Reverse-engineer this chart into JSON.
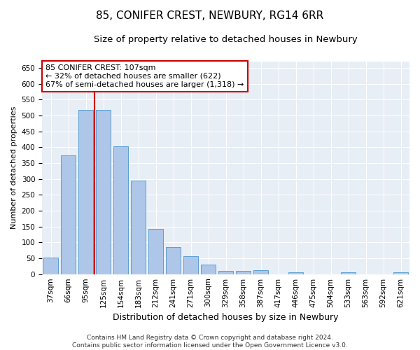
{
  "title": "85, CONIFER CREST, NEWBURY, RG14 6RR",
  "subtitle": "Size of property relative to detached houses in Newbury",
  "xlabel": "Distribution of detached houses by size in Newbury",
  "ylabel": "Number of detached properties",
  "categories": [
    "37sqm",
    "66sqm",
    "95sqm",
    "125sqm",
    "154sqm",
    "183sqm",
    "212sqm",
    "241sqm",
    "271sqm",
    "300sqm",
    "329sqm",
    "358sqm",
    "387sqm",
    "417sqm",
    "446sqm",
    "475sqm",
    "504sqm",
    "533sqm",
    "563sqm",
    "592sqm",
    "621sqm"
  ],
  "values": [
    52,
    375,
    518,
    518,
    402,
    295,
    142,
    85,
    57,
    30,
    11,
    11,
    13,
    0,
    5,
    0,
    0,
    5,
    0,
    0,
    5
  ],
  "bar_color": "#aec6e8",
  "bar_edge_color": "#5a9fd4",
  "vline_x": 2.5,
  "vline_color": "#cc0000",
  "annotation_text": "85 CONIFER CREST: 107sqm\n← 32% of detached houses are smaller (622)\n67% of semi-detached houses are larger (1,318) →",
  "annotation_box_color": "#cc0000",
  "ylim": [
    0,
    670
  ],
  "yticks": [
    0,
    50,
    100,
    150,
    200,
    250,
    300,
    350,
    400,
    450,
    500,
    550,
    600,
    650
  ],
  "plot_bg_color": "#e8eef5",
  "footer": "Contains HM Land Registry data © Crown copyright and database right 2024.\nContains public sector information licensed under the Open Government Licence v3.0.",
  "title_fontsize": 11,
  "subtitle_fontsize": 9.5,
  "xlabel_fontsize": 9,
  "ylabel_fontsize": 8,
  "footer_fontsize": 6.5,
  "tick_fontsize": 7.5,
  "annot_fontsize": 8
}
